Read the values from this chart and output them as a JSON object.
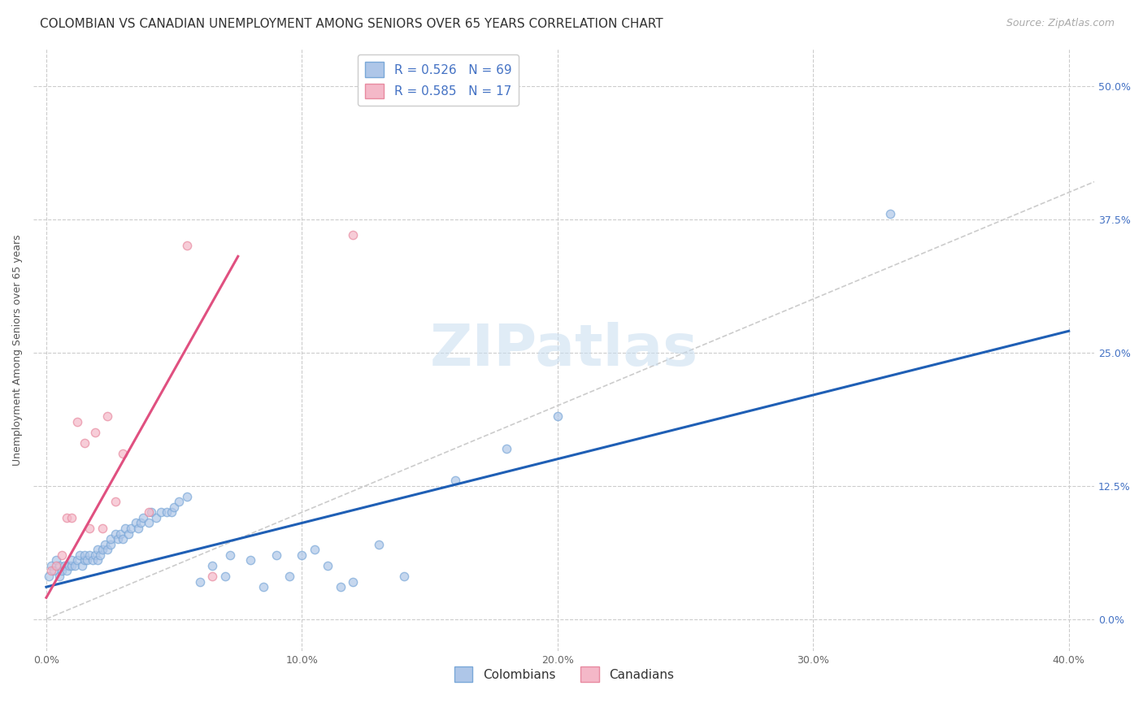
{
  "title": "COLOMBIAN VS CANADIAN UNEMPLOYMENT AMONG SENIORS OVER 65 YEARS CORRELATION CHART",
  "source": "Source: ZipAtlas.com",
  "ylabel": "Unemployment Among Seniors over 65 years",
  "yticks": [
    "0.0%",
    "12.5%",
    "25.0%",
    "37.5%",
    "50.0%"
  ],
  "ytick_vals": [
    0.0,
    0.125,
    0.25,
    0.375,
    0.5
  ],
  "xtick_vals": [
    0.0,
    0.1,
    0.2,
    0.3,
    0.4
  ],
  "xtick_labels": [
    "0.0%",
    "10.0%",
    "20.0%",
    "30.0%",
    "40.0%"
  ],
  "xlim": [
    -0.005,
    0.41
  ],
  "ylim": [
    -0.03,
    0.535
  ],
  "background_color": "#ffffff",
  "watermark_text": "ZIPatlas",
  "legend_text_color": "#4472c4",
  "colombian_face_color": "#aec6e8",
  "canadian_face_color": "#f4b8c8",
  "colombian_edge_color": "#7aa8d8",
  "canadian_edge_color": "#e88aa0",
  "colombian_line_color": "#1f5fb5",
  "canadian_line_color": "#e05080",
  "diagonal_line_color": "#cccccc",
  "R_colombian": "0.526",
  "N_colombian": "69",
  "R_canadian": "0.585",
  "N_canadian": "17",
  "colombians_label": "Colombians",
  "canadians_label": "Canadians",
  "colombian_points": [
    [
      0.001,
      0.04
    ],
    [
      0.002,
      0.05
    ],
    [
      0.003,
      0.045
    ],
    [
      0.004,
      0.055
    ],
    [
      0.005,
      0.04
    ],
    [
      0.005,
      0.05
    ],
    [
      0.006,
      0.045
    ],
    [
      0.007,
      0.05
    ],
    [
      0.008,
      0.045
    ],
    [
      0.009,
      0.05
    ],
    [
      0.01,
      0.05
    ],
    [
      0.01,
      0.055
    ],
    [
      0.011,
      0.05
    ],
    [
      0.012,
      0.055
    ],
    [
      0.013,
      0.06
    ],
    [
      0.014,
      0.05
    ],
    [
      0.015,
      0.055
    ],
    [
      0.015,
      0.06
    ],
    [
      0.016,
      0.055
    ],
    [
      0.017,
      0.06
    ],
    [
      0.018,
      0.055
    ],
    [
      0.019,
      0.06
    ],
    [
      0.02,
      0.055
    ],
    [
      0.02,
      0.065
    ],
    [
      0.021,
      0.06
    ],
    [
      0.022,
      0.065
    ],
    [
      0.023,
      0.07
    ],
    [
      0.024,
      0.065
    ],
    [
      0.025,
      0.07
    ],
    [
      0.025,
      0.075
    ],
    [
      0.027,
      0.08
    ],
    [
      0.028,
      0.075
    ],
    [
      0.029,
      0.08
    ],
    [
      0.03,
      0.075
    ],
    [
      0.031,
      0.085
    ],
    [
      0.032,
      0.08
    ],
    [
      0.033,
      0.085
    ],
    [
      0.035,
      0.09
    ],
    [
      0.036,
      0.085
    ],
    [
      0.037,
      0.09
    ],
    [
      0.038,
      0.095
    ],
    [
      0.04,
      0.09
    ],
    [
      0.041,
      0.1
    ],
    [
      0.043,
      0.095
    ],
    [
      0.045,
      0.1
    ],
    [
      0.047,
      0.1
    ],
    [
      0.049,
      0.1
    ],
    [
      0.05,
      0.105
    ],
    [
      0.052,
      0.11
    ],
    [
      0.055,
      0.115
    ],
    [
      0.06,
      0.035
    ],
    [
      0.065,
      0.05
    ],
    [
      0.07,
      0.04
    ],
    [
      0.072,
      0.06
    ],
    [
      0.08,
      0.055
    ],
    [
      0.085,
      0.03
    ],
    [
      0.09,
      0.06
    ],
    [
      0.095,
      0.04
    ],
    [
      0.1,
      0.06
    ],
    [
      0.105,
      0.065
    ],
    [
      0.11,
      0.05
    ],
    [
      0.115,
      0.03
    ],
    [
      0.12,
      0.035
    ],
    [
      0.13,
      0.07
    ],
    [
      0.14,
      0.04
    ],
    [
      0.16,
      0.13
    ],
    [
      0.18,
      0.16
    ],
    [
      0.2,
      0.19
    ],
    [
      0.33,
      0.38
    ]
  ],
  "canadian_points": [
    [
      0.002,
      0.045
    ],
    [
      0.004,
      0.05
    ],
    [
      0.006,
      0.06
    ],
    [
      0.008,
      0.095
    ],
    [
      0.01,
      0.095
    ],
    [
      0.012,
      0.185
    ],
    [
      0.015,
      0.165
    ],
    [
      0.017,
      0.085
    ],
    [
      0.019,
      0.175
    ],
    [
      0.022,
      0.085
    ],
    [
      0.024,
      0.19
    ],
    [
      0.027,
      0.11
    ],
    [
      0.03,
      0.155
    ],
    [
      0.04,
      0.1
    ],
    [
      0.055,
      0.35
    ],
    [
      0.065,
      0.04
    ],
    [
      0.12,
      0.36
    ]
  ],
  "colombian_line_pts": [
    [
      0.0,
      0.03
    ],
    [
      0.4,
      0.27
    ]
  ],
  "canadian_line_pts": [
    [
      0.0,
      0.02
    ],
    [
      0.075,
      0.34
    ]
  ],
  "diag_line_pts": [
    [
      0.0,
      0.0
    ],
    [
      0.5,
      0.5
    ]
  ],
  "title_fontsize": 11,
  "source_fontsize": 9,
  "axis_label_fontsize": 9,
  "tick_fontsize": 9,
  "legend_fontsize": 11,
  "marker_size": 55
}
